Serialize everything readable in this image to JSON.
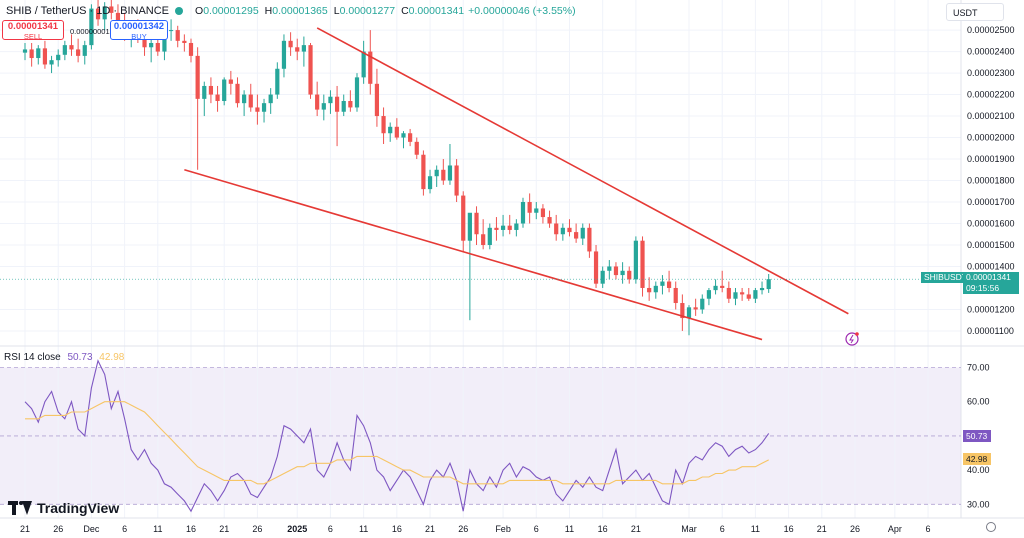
{
  "header": {
    "symbol": "SHIB / TetherUS · 1D · BINANCE",
    "open_label": "O",
    "open": "0.00001295",
    "high_label": "H",
    "high": "0.00001365",
    "low_label": "L",
    "low": "0.00001277",
    "close_label": "C",
    "close": "0.00001341",
    "change": "+0.00000046 (+3.55%)"
  },
  "trade": {
    "sell_price": "0.00001341",
    "sell_label": "SELL",
    "spread": "0.00000001",
    "buy_price": "0.00001342",
    "buy_label": "BUY"
  },
  "currency_button": "USDT",
  "price_badge": {
    "symbol": "SHIBUSDT",
    "price": "0.00001341",
    "countdown": "09:15:56"
  },
  "rsi_legend": {
    "label": "RSI 14 close",
    "rsi_value": "50.73",
    "ma_value": "42.98"
  },
  "brand": "TradingView",
  "colors": {
    "up": "#26a69a",
    "down": "#ef5350",
    "trendline": "#e53935",
    "rsi": "#7e57c2",
    "rsi_ma": "#f7c566",
    "rsi_band": "#7e57c2"
  },
  "chart_data": [
    {
      "type": "candlestick",
      "title": "SHIB / TetherUS · 1D · BINANCE",
      "y_axis": {
        "ticks": [
          2.5e-05,
          2.4e-05,
          2.3e-05,
          2.2e-05,
          2.1e-05,
          2e-05,
          1.9e-05,
          1.8e-05,
          1.7e-05,
          1.6e-05,
          1.5e-05,
          1.4e-05,
          1.2e-05,
          1.1e-05
        ],
        "tick_labels": [
          "0.00002500",
          "0.00002400",
          "0.00002300",
          "0.00002200",
          "0.00002100",
          "0.00002000",
          "0.00001900",
          "0.00001800",
          "0.00001700",
          "0.00001600",
          "0.00001500",
          "0.00001400",
          "0.00001200",
          "0.00001100"
        ],
        "ylim": [
          1.03e-05,
          2.64e-05
        ]
      },
      "x_axis": {
        "tick_labels": [
          "21",
          "26",
          "Dec",
          "6",
          "11",
          "16",
          "21",
          "26",
          "2025",
          "6",
          "11",
          "16",
          "21",
          "26",
          "Feb",
          "6",
          "11",
          "16",
          "21",
          "Mar",
          "6",
          "11",
          "16",
          "21",
          "26",
          "Apr",
          "6"
        ],
        "tick_day_index": [
          0,
          5,
          10,
          15,
          20,
          25,
          30,
          35,
          41,
          46,
          51,
          56,
          61,
          66,
          72,
          77,
          82,
          87,
          92,
          100,
          105,
          110,
          115,
          120,
          125,
          131,
          136
        ]
      },
      "candles_ohlc": [
        [
          2.395,
          2.44,
          2.36,
          2.41
        ],
        [
          2.41,
          2.44,
          2.33,
          2.37
        ],
        [
          2.37,
          2.43,
          2.34,
          2.415
        ],
        [
          2.415,
          2.45,
          2.32,
          2.34
        ],
        [
          2.34,
          2.38,
          2.3,
          2.36
        ],
        [
          2.36,
          2.41,
          2.33,
          2.385
        ],
        [
          2.385,
          2.45,
          2.36,
          2.43
        ],
        [
          2.43,
          2.48,
          2.38,
          2.41
        ],
        [
          2.41,
          2.46,
          2.35,
          2.38
        ],
        [
          2.38,
          2.45,
          2.34,
          2.43
        ],
        [
          2.43,
          2.62,
          2.41,
          2.6
        ],
        [
          2.6,
          2.65,
          2.52,
          2.55
        ],
        [
          2.55,
          2.63,
          2.5,
          2.61
        ],
        [
          2.61,
          2.66,
          2.55,
          2.58
        ],
        [
          2.58,
          2.62,
          2.5,
          2.52
        ],
        [
          2.52,
          2.58,
          2.45,
          2.47
        ],
        [
          2.47,
          2.52,
          2.42,
          2.5
        ],
        [
          2.5,
          2.55,
          2.44,
          2.46
        ],
        [
          2.46,
          2.5,
          2.38,
          2.42
        ],
        [
          2.42,
          2.46,
          2.35,
          2.44
        ],
        [
          2.44,
          2.48,
          2.38,
          2.4
        ],
        [
          2.4,
          2.52,
          2.36,
          2.48
        ],
        [
          2.5,
          2.55,
          2.45,
          2.5
        ],
        [
          2.5,
          2.52,
          2.42,
          2.45
        ],
        [
          2.45,
          2.48,
          2.4,
          2.44
        ],
        [
          2.44,
          2.46,
          2.35,
          2.38
        ],
        [
          2.38,
          2.42,
          1.85,
          2.18
        ],
        [
          2.18,
          2.26,
          2.1,
          2.24
        ],
        [
          2.24,
          2.28,
          2.16,
          2.2
        ],
        [
          2.2,
          2.24,
          2.12,
          2.17
        ],
        [
          2.17,
          2.28,
          2.15,
          2.27
        ],
        [
          2.27,
          2.31,
          2.2,
          2.25
        ],
        [
          2.25,
          2.28,
          2.14,
          2.16
        ],
        [
          2.16,
          2.22,
          2.1,
          2.2
        ],
        [
          2.2,
          2.25,
          2.12,
          2.14
        ],
        [
          2.14,
          2.2,
          2.06,
          2.12
        ],
        [
          2.12,
          2.18,
          2.07,
          2.16
        ],
        [
          2.16,
          2.23,
          2.11,
          2.2
        ],
        [
          2.2,
          2.35,
          2.18,
          2.32
        ],
        [
          2.32,
          2.48,
          2.28,
          2.45
        ],
        [
          2.45,
          2.49,
          2.38,
          2.42
        ],
        [
          2.42,
          2.46,
          2.36,
          2.4
        ],
        [
          2.4,
          2.47,
          2.33,
          2.43
        ],
        [
          2.43,
          2.44,
          2.18,
          2.2
        ],
        [
          2.2,
          2.26,
          2.1,
          2.13
        ],
        [
          2.13,
          2.2,
          2.08,
          2.16
        ],
        [
          2.16,
          2.22,
          2.11,
          2.19
        ],
        [
          2.19,
          2.24,
          1.96,
          2.12
        ],
        [
          2.12,
          2.2,
          2.1,
          2.17
        ],
        [
          2.17,
          2.22,
          2.12,
          2.14
        ],
        [
          2.14,
          2.3,
          2.12,
          2.28
        ],
        [
          2.28,
          2.45,
          2.25,
          2.4
        ],
        [
          2.4,
          2.5,
          2.2,
          2.25
        ],
        [
          2.25,
          2.32,
          2.05,
          2.1
        ],
        [
          2.1,
          2.14,
          1.97,
          2.02
        ],
        [
          2.02,
          2.07,
          1.98,
          2.05
        ],
        [
          2.05,
          2.09,
          1.99,
          2.0
        ],
        [
          2.0,
          2.03,
          1.95,
          2.02
        ],
        [
          2.02,
          2.04,
          1.96,
          1.98
        ],
        [
          1.98,
          2.0,
          1.9,
          1.92
        ],
        [
          1.92,
          1.94,
          1.73,
          1.76
        ],
        [
          1.76,
          1.85,
          1.74,
          1.82
        ],
        [
          1.82,
          1.87,
          1.77,
          1.85
        ],
        [
          1.85,
          1.9,
          1.78,
          1.8
        ],
        [
          1.8,
          1.97,
          1.78,
          1.87
        ],
        [
          1.87,
          1.9,
          1.7,
          1.73
        ],
        [
          1.73,
          1.75,
          1.47,
          1.52
        ],
        [
          1.52,
          1.6,
          1.15,
          1.65
        ],
        [
          1.65,
          1.68,
          1.5,
          1.55
        ],
        [
          1.55,
          1.62,
          1.48,
          1.5
        ],
        [
          1.5,
          1.6,
          1.48,
          1.58
        ],
        [
          1.58,
          1.63,
          1.52,
          1.57
        ],
        [
          1.57,
          1.64,
          1.54,
          1.59
        ],
        [
          1.59,
          1.64,
          1.55,
          1.57
        ],
        [
          1.57,
          1.62,
          1.54,
          1.6
        ],
        [
          1.6,
          1.72,
          1.58,
          1.7
        ],
        [
          1.7,
          1.74,
          1.6,
          1.65
        ],
        [
          1.65,
          1.7,
          1.62,
          1.67
        ],
        [
          1.67,
          1.69,
          1.6,
          1.63
        ],
        [
          1.63,
          1.66,
          1.58,
          1.6
        ],
        [
          1.6,
          1.64,
          1.52,
          1.55
        ],
        [
          1.55,
          1.6,
          1.52,
          1.58
        ],
        [
          1.58,
          1.62,
          1.54,
          1.56
        ],
        [
          1.56,
          1.6,
          1.51,
          1.53
        ],
        [
          1.53,
          1.6,
          1.5,
          1.58
        ],
        [
          1.58,
          1.6,
          1.44,
          1.47
        ],
        [
          1.47,
          1.5,
          1.3,
          1.32
        ],
        [
          1.32,
          1.4,
          1.3,
          1.38
        ],
        [
          1.38,
          1.43,
          1.34,
          1.4
        ],
        [
          1.4,
          1.42,
          1.34,
          1.36
        ],
        [
          1.36,
          1.42,
          1.32,
          1.38
        ],
        [
          1.38,
          1.4,
          1.32,
          1.34
        ],
        [
          1.34,
          1.54,
          1.32,
          1.52
        ],
        [
          1.52,
          1.54,
          1.26,
          1.3
        ],
        [
          1.3,
          1.35,
          1.24,
          1.28
        ],
        [
          1.28,
          1.33,
          1.25,
          1.31
        ],
        [
          1.31,
          1.36,
          1.27,
          1.33
        ],
        [
          1.33,
          1.38,
          1.28,
          1.3
        ],
        [
          1.3,
          1.33,
          1.2,
          1.23
        ],
        [
          1.23,
          1.27,
          1.1,
          1.16
        ],
        [
          1.16,
          1.22,
          1.08,
          1.21
        ],
        [
          1.21,
          1.25,
          1.17,
          1.2
        ],
        [
          1.2,
          1.27,
          1.18,
          1.25
        ],
        [
          1.25,
          1.3,
          1.22,
          1.29
        ],
        [
          1.29,
          1.34,
          1.27,
          1.31
        ],
        [
          1.31,
          1.38,
          1.28,
          1.3
        ],
        [
          1.3,
          1.33,
          1.23,
          1.25
        ],
        [
          1.25,
          1.3,
          1.22,
          1.28
        ],
        [
          1.28,
          1.3,
          1.24,
          1.27
        ],
        [
          1.27,
          1.3,
          1.24,
          1.25
        ],
        [
          1.25,
          1.3,
          1.23,
          1.29
        ],
        [
          1.29,
          1.33,
          1.27,
          1.3
        ],
        [
          1.295,
          1.365,
          1.277,
          1.341
        ]
      ],
      "candles_scale": 1e-05,
      "trendlines": [
        {
          "name": "upper",
          "from": {
            "day": 44,
            "price": 2.51e-05
          },
          "to": {
            "day": 124,
            "price": 1.18e-05
          }
        },
        {
          "name": "lower",
          "from": {
            "day": 24,
            "price": 1.85e-05
          },
          "to": {
            "day": 111,
            "price": 1.06e-05
          }
        }
      ],
      "last_price": 1.341e-05
    },
    {
      "type": "line",
      "title": "RSI 14 close",
      "series": [
        {
          "name": "RSI",
          "values": [
            60,
            58,
            54,
            60,
            63,
            57,
            55,
            60,
            52,
            50,
            64,
            72,
            68,
            58,
            63,
            55,
            46,
            43,
            46,
            42,
            40,
            36,
            35,
            33,
            31,
            28,
            32,
            36,
            34,
            31,
            34,
            38,
            39,
            37,
            33,
            32,
            35,
            38,
            44,
            53,
            52,
            50,
            48,
            52,
            40,
            38,
            42,
            48,
            43,
            40,
            56,
            53,
            48,
            40,
            38,
            34,
            37,
            40,
            38,
            34,
            30,
            37,
            40,
            38,
            42,
            37,
            28,
            40,
            36,
            34,
            38,
            35,
            40,
            42,
            38,
            41,
            40,
            38,
            37,
            38,
            33,
            31,
            34,
            37,
            35,
            38,
            35,
            34,
            40,
            46,
            36,
            38,
            40,
            37,
            39,
            35,
            31,
            30,
            40,
            36,
            42,
            44,
            43,
            46,
            48,
            47,
            44,
            46,
            47,
            45,
            46,
            48,
            50.73
          ]
        },
        {
          "name": "RSI-based MA",
          "values": [
            55,
            55,
            55,
            56,
            56,
            56,
            56,
            57,
            57,
            57,
            58,
            59,
            60,
            60,
            60,
            60,
            59,
            58,
            57,
            55,
            53,
            51,
            49,
            47,
            45,
            43,
            41,
            40,
            39,
            38,
            37,
            37,
            37,
            37,
            37,
            36,
            36,
            37,
            38,
            39,
            40,
            41,
            41,
            42,
            42,
            42,
            42,
            43,
            43,
            43,
            44,
            44,
            44,
            44,
            43,
            42,
            41,
            40,
            40,
            39,
            38,
            38,
            38,
            38,
            38,
            37,
            36,
            36,
            36,
            36,
            36,
            36,
            36,
            37,
            37,
            37,
            37,
            37,
            37,
            37,
            37,
            36,
            36,
            36,
            36,
            36,
            36,
            36,
            36,
            37,
            37,
            37,
            37,
            37,
            37,
            37,
            36,
            36,
            36,
            36,
            37,
            37,
            38,
            38,
            39,
            39,
            40,
            40,
            41,
            41,
            41,
            42,
            42.98
          ]
        }
      ],
      "y_ticks": [
        70,
        60,
        50,
        40,
        30
      ],
      "y_tick_labels": [
        "70.00",
        "60.00",
        "50.00",
        "40.00",
        "30.00"
      ],
      "band": [
        30,
        70
      ],
      "ylim": [
        26,
        76
      ],
      "legend": "top-left"
    }
  ]
}
